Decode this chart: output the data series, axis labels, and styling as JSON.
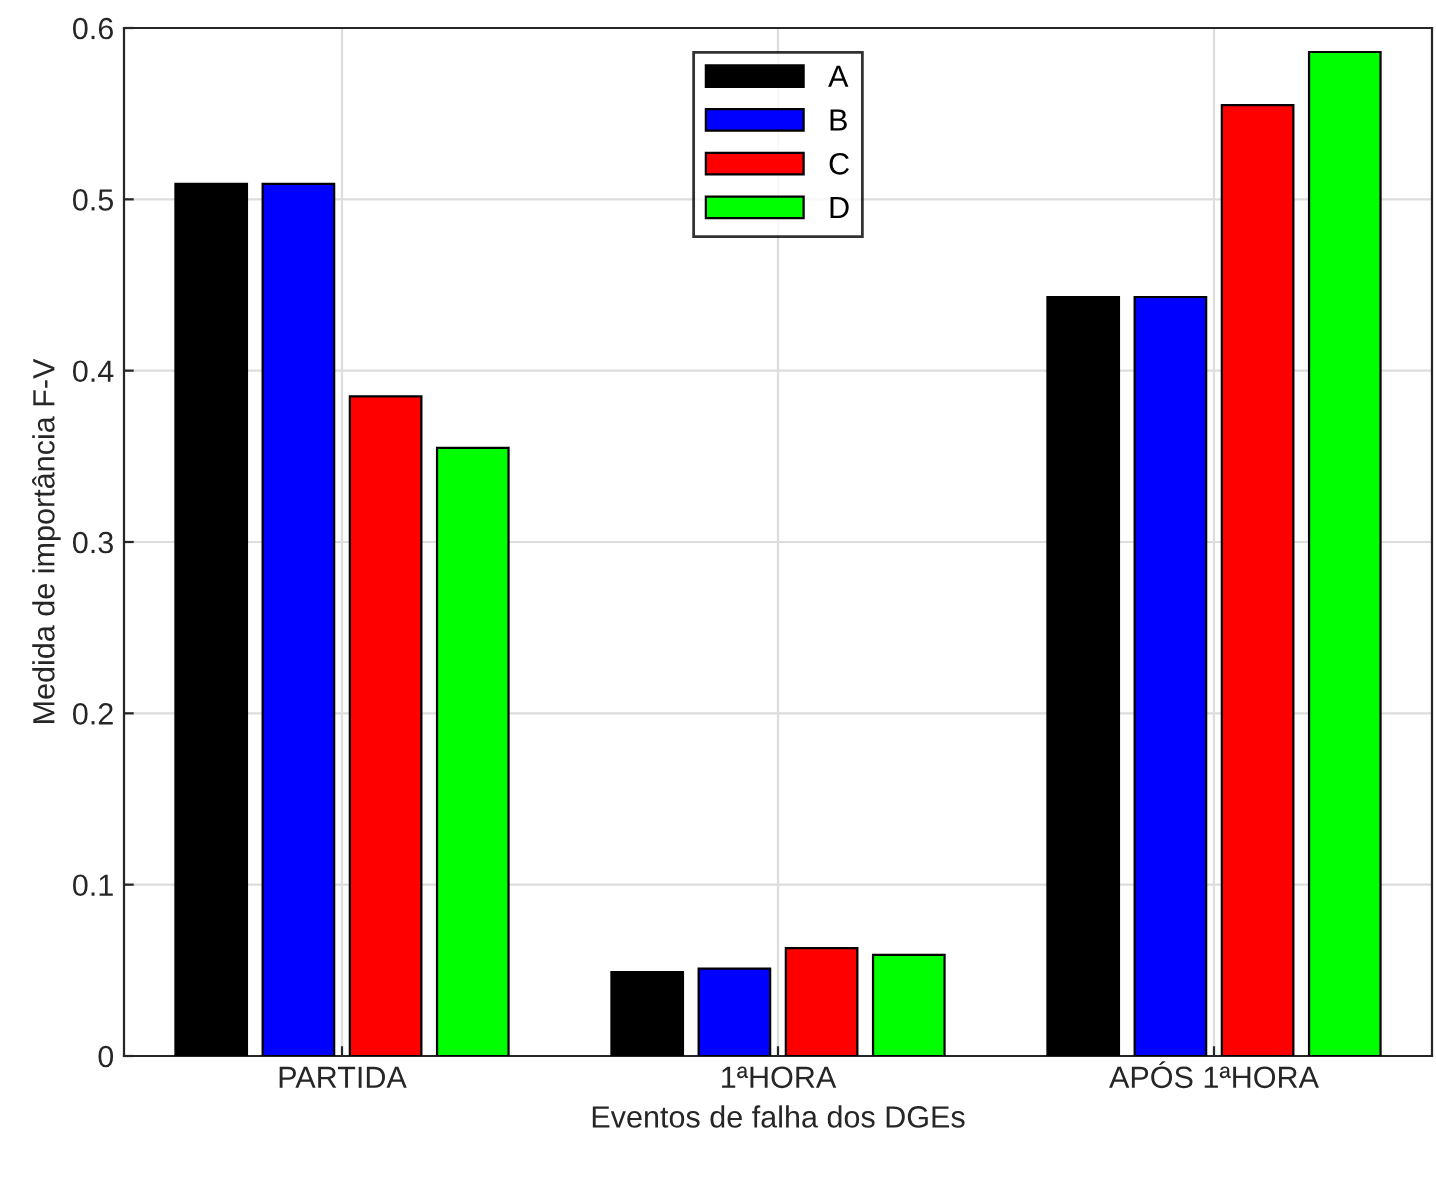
{
  "chart_data": {
    "type": "bar",
    "xlabel": "Eventos de falha dos DGEs",
    "ylabel": "Medida de importância F-V",
    "categories": [
      "PARTIDA",
      "1ªHORA",
      "APÓS 1ªHORA"
    ],
    "series": [
      {
        "name": "A",
        "color": "#000000",
        "values": [
          0.509,
          0.049,
          0.443
        ]
      },
      {
        "name": "B",
        "color": "#0000ff",
        "values": [
          0.509,
          0.051,
          0.443
        ]
      },
      {
        "name": "C",
        "color": "#ff0000",
        "values": [
          0.385,
          0.063,
          0.555
        ]
      },
      {
        "name": "D",
        "color": "#00ff00",
        "values": [
          0.355,
          0.059,
          0.586
        ]
      }
    ],
    "ylim": [
      0,
      0.6
    ],
    "yticks": [
      0,
      0.1,
      0.2,
      0.3,
      0.4,
      0.5,
      0.6
    ],
    "grid": true,
    "legend": "top"
  }
}
